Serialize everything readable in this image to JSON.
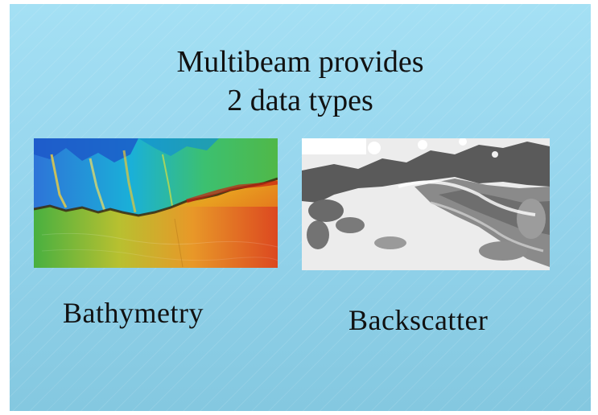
{
  "slide": {
    "title_line1": "Multibeam provides",
    "title_line2": "2 data types",
    "images": [
      {
        "caption": "Bathymetry",
        "icon": "bathymetry-image"
      },
      {
        "caption": "Backscatter",
        "icon": "backscatter-image"
      }
    ],
    "colors": {
      "background": "#98d6ee",
      "text": "#111111"
    }
  }
}
